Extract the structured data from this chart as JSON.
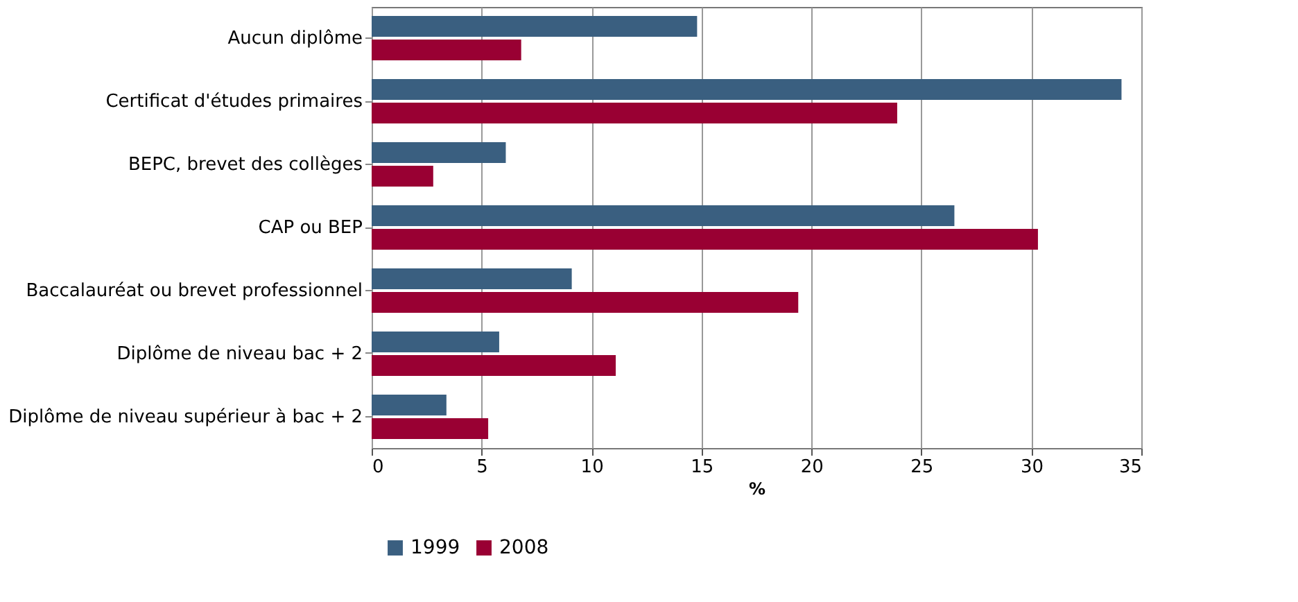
{
  "chart_data": {
    "type": "bar",
    "orientation": "horizontal",
    "xlabel": "%",
    "categories": [
      "Aucun diplôme",
      "Certificat d'études primaires",
      "BEPC, brevet des collèges",
      "CAP ou BEP",
      "Baccalauréat ou brevet professionnel",
      "Diplôme de niveau bac + 2",
      "Diplôme de niveau supérieur à bac + 2"
    ],
    "series": [
      {
        "name": "1999",
        "color": "#3a5f80",
        "values": [
          14.8,
          34.1,
          6.1,
          26.5,
          9.1,
          5.8,
          3.4
        ]
      },
      {
        "name": "2008",
        "color": "#990033",
        "values": [
          6.8,
          23.9,
          2.8,
          30.3,
          19.4,
          11.1,
          5.3
        ]
      }
    ],
    "xlim": [
      0,
      35
    ],
    "xticks": [
      0,
      5,
      10,
      15,
      20,
      25,
      30,
      35
    ],
    "grid": "x",
    "legend": "bottom"
  }
}
